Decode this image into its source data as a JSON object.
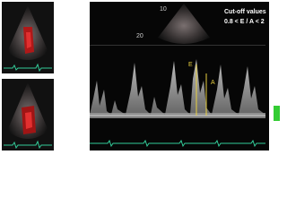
{
  "sector_labels": [
    "10",
    "20"
  ],
  "cutoff": {
    "title": "Cut-off values",
    "rule": "0.8 < E / A < 2"
  },
  "wave_labels": {
    "e": "E",
    "a": "A"
  }
}
